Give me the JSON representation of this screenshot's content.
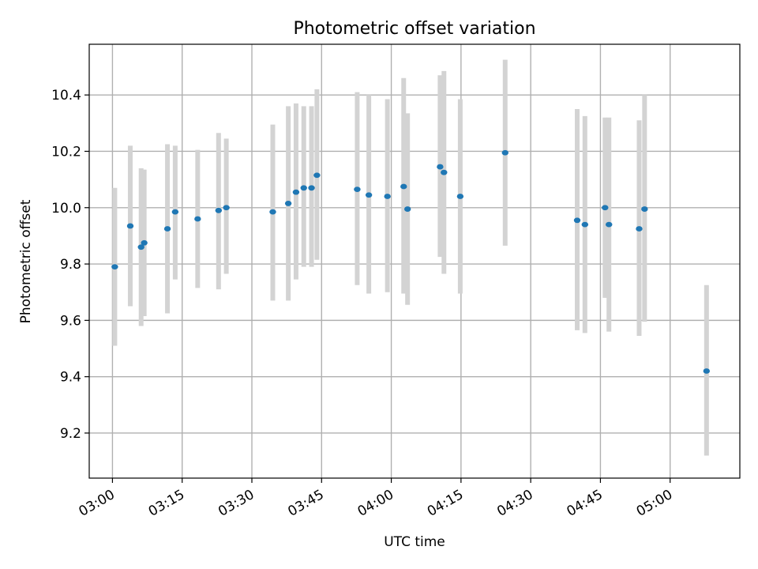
{
  "chart_data": {
    "type": "scatter",
    "title": "Photometric offset variation",
    "xlabel": "UTC time",
    "ylabel": "Photometric offset",
    "x_unit": "UTC clock time",
    "xlim": [
      "02:55",
      "05:15"
    ],
    "ylim": [
      9.04,
      10.58
    ],
    "x_ticks": [
      "03:00",
      "03:15",
      "03:30",
      "03:45",
      "04:00",
      "04:15",
      "04:30",
      "04:45",
      "05:00"
    ],
    "y_ticks": [
      9.2,
      9.4,
      9.6,
      9.8,
      10.0,
      10.2,
      10.4
    ],
    "y_tick_labels": [
      "9.2",
      "9.4",
      "9.6",
      "9.8",
      "10.0",
      "10.2",
      "10.4"
    ],
    "x_tick_rotation": "rotated ~30 degrees",
    "grid": true,
    "marker_color": "#1f77b4",
    "errorbar_color": "#d3d3d3",
    "series": [
      {
        "points": [
          {
            "t": "03:00:30",
            "y": 9.79,
            "lo": 9.51,
            "hi": 10.07
          },
          {
            "t": "03:03:50",
            "y": 9.935,
            "lo": 9.65,
            "hi": 10.22
          },
          {
            "t": "03:06:10",
            "y": 9.86,
            "lo": 9.58,
            "hi": 10.14
          },
          {
            "t": "03:06:50",
            "y": 9.875,
            "lo": 9.615,
            "hi": 10.135
          },
          {
            "t": "03:11:50",
            "y": 9.925,
            "lo": 9.625,
            "hi": 10.225
          },
          {
            "t": "03:13:30",
            "y": 9.985,
            "lo": 9.745,
            "hi": 10.22
          },
          {
            "t": "03:18:20",
            "y": 9.96,
            "lo": 9.715,
            "hi": 10.205
          },
          {
            "t": "03:22:50",
            "y": 9.99,
            "lo": 9.71,
            "hi": 10.265
          },
          {
            "t": "03:24:30",
            "y": 10.0,
            "lo": 9.765,
            "hi": 10.245
          },
          {
            "t": "03:34:30",
            "y": 9.985,
            "lo": 9.67,
            "hi": 10.295
          },
          {
            "t": "03:37:50",
            "y": 10.015,
            "lo": 9.67,
            "hi": 10.36
          },
          {
            "t": "03:39:30",
            "y": 10.055,
            "lo": 9.745,
            "hi": 10.37
          },
          {
            "t": "03:41:10",
            "y": 10.07,
            "lo": 9.79,
            "hi": 10.36
          },
          {
            "t": "03:42:50",
            "y": 10.07,
            "lo": 9.79,
            "hi": 10.36
          },
          {
            "t": "03:44:00",
            "y": 10.115,
            "lo": 9.815,
            "hi": 10.42
          },
          {
            "t": "03:52:40",
            "y": 10.065,
            "lo": 9.725,
            "hi": 10.41
          },
          {
            "t": "03:55:10",
            "y": 10.045,
            "lo": 9.695,
            "hi": 10.4
          },
          {
            "t": "03:59:10",
            "y": 10.04,
            "lo": 9.7,
            "hi": 10.385
          },
          {
            "t": "04:02:40",
            "y": 10.075,
            "lo": 9.695,
            "hi": 10.46
          },
          {
            "t": "04:03:30",
            "y": 9.995,
            "lo": 9.655,
            "hi": 10.335
          },
          {
            "t": "04:10:30",
            "y": 10.145,
            "lo": 9.825,
            "hi": 10.47
          },
          {
            "t": "04:11:20",
            "y": 10.125,
            "lo": 9.765,
            "hi": 10.485
          },
          {
            "t": "04:14:50",
            "y": 10.04,
            "lo": 9.695,
            "hi": 10.385
          },
          {
            "t": "04:24:30",
            "y": 10.195,
            "lo": 9.865,
            "hi": 10.525
          },
          {
            "t": "04:40:00",
            "y": 9.955,
            "lo": 9.565,
            "hi": 10.35
          },
          {
            "t": "04:41:40",
            "y": 9.94,
            "lo": 9.555,
            "hi": 10.325
          },
          {
            "t": "04:46:00",
            "y": 10.0,
            "lo": 9.68,
            "hi": 10.32
          },
          {
            "t": "04:46:50",
            "y": 9.94,
            "lo": 9.56,
            "hi": 10.32
          },
          {
            "t": "04:53:20",
            "y": 9.925,
            "lo": 9.545,
            "hi": 10.31
          },
          {
            "t": "04:54:30",
            "y": 9.995,
            "lo": 9.595,
            "hi": 10.4
          },
          {
            "t": "05:07:50",
            "y": 9.42,
            "lo": 9.12,
            "hi": 9.725
          }
        ]
      }
    ]
  }
}
